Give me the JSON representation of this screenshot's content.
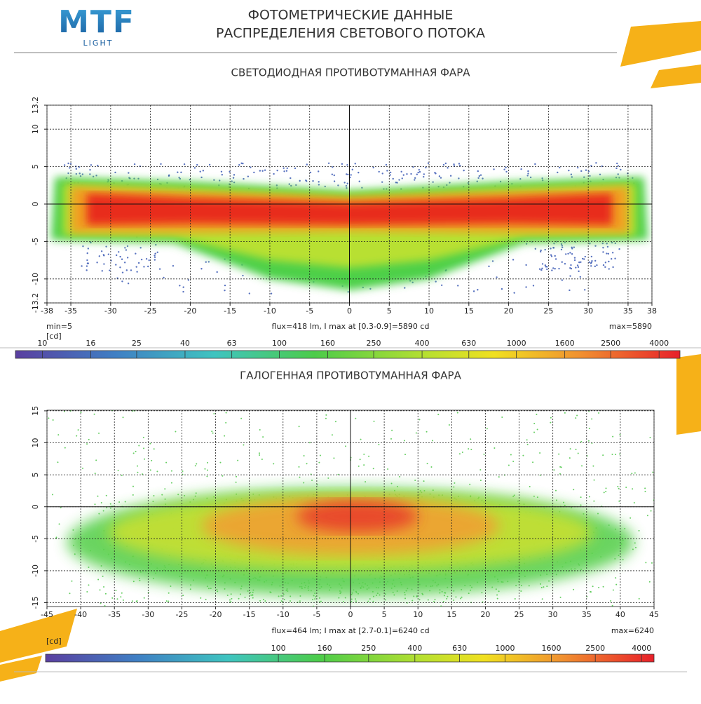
{
  "logo": {
    "brand": "MTF",
    "sub": "LIGHT"
  },
  "header": {
    "title_line1": "ФОТОМЕТРИЧЕСКИЕ ДАННЫЕ",
    "title_line2": "РАСПРЕДЕЛЕНИЯ СВЕТОВОГО ПОТОКА"
  },
  "chart_data": [
    {
      "type": "heatmap",
      "title": "СВЕТОДИОДНАЯ ПРОТИВОТУМАННАЯ ФАРА",
      "xlim": [
        -38,
        38
      ],
      "xticks": [
        -38,
        -35,
        -30,
        -25,
        -20,
        -15,
        -10,
        -5,
        0,
        5,
        10,
        15,
        20,
        25,
        30,
        35,
        38
      ],
      "ylim": [
        -13.2,
        13.2
      ],
      "yticks": [
        -13.2,
        -10,
        -5,
        0,
        5,
        10,
        13.2
      ],
      "grid": true,
      "annotations": {
        "min": "min=5",
        "unit": "[cd]",
        "flux": "flux=418 lm, I max at [0.3-0.9]=5890 cd",
        "max": "max=5890"
      },
      "colorbar": {
        "scale": "log",
        "lim": [
          7.7,
          4900
        ],
        "ticks": [
          10,
          16,
          25,
          40,
          63,
          100,
          160,
          250,
          400,
          630,
          1000,
          1600,
          2500,
          4000
        ]
      }
    },
    {
      "type": "heatmap",
      "title": "ГАЛОГЕННАЯ ПРОТИВОТУМАННАЯ ФАРА",
      "xlim": [
        -45,
        45
      ],
      "xticks": [
        -45,
        -40,
        -35,
        -30,
        -25,
        -20,
        -15,
        -10,
        -5,
        0,
        5,
        10,
        15,
        20,
        25,
        30,
        35,
        40,
        45
      ],
      "ylim": [
        -15.6,
        15.1
      ],
      "yticks": [
        -15,
        -10,
        -5,
        0,
        5,
        10,
        15
      ],
      "grid": true,
      "annotations": {
        "unit": "[cd]",
        "flux": "flux=464 lm; I max at [2.7-0.1]=6240 cd",
        "max": "max=6240"
      },
      "colorbar": {
        "scale": "log",
        "lim": [
          9.4,
          4540
        ],
        "ticks": [
          100,
          160,
          250,
          400,
          630,
          1000,
          1600,
          2500,
          4000
        ]
      }
    }
  ]
}
